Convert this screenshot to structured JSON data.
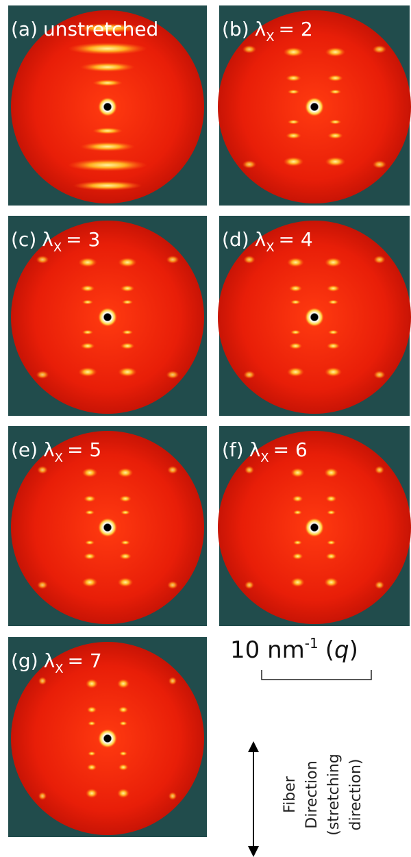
{
  "panels": [
    {
      "label": "(a)",
      "text": "unstretched"
    },
    {
      "label": "(b)",
      "symbol": "λ",
      "subscript": "X",
      "value": "= 2"
    },
    {
      "label": "(c)",
      "symbol": "λ",
      "subscript": "X",
      "value": "= 3"
    },
    {
      "label": "(d)",
      "symbol": "λ",
      "subscript": "X",
      "value": "= 4"
    },
    {
      "label": "(e)",
      "symbol": "λ",
      "subscript": "X",
      "value": "= 5"
    },
    {
      "label": "(f)",
      "symbol": "λ",
      "subscript": "X",
      "value": "= 6"
    },
    {
      "label": "(g)",
      "symbol": "λ",
      "subscript": "X",
      "value": "= 7"
    }
  ],
  "scale": {
    "value": "10 nm",
    "superscript": "-1",
    "open": "(",
    "variable": "q",
    "close": ")"
  },
  "axis": {
    "lines": [
      "Fiber",
      "Direction",
      "(stretching",
      "direction)"
    ]
  }
}
